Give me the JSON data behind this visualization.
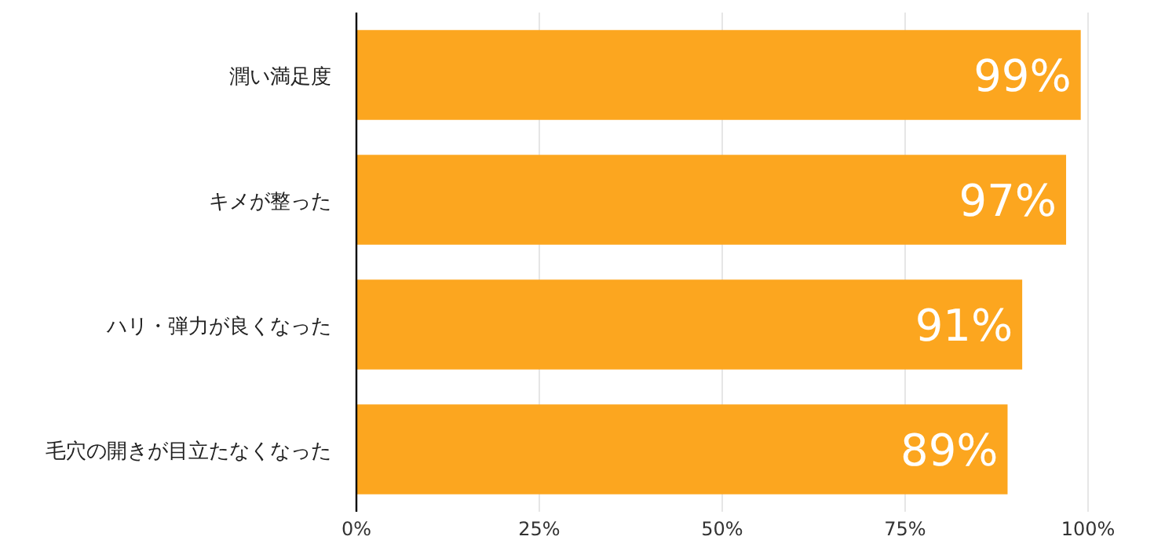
{
  "chart_data": {
    "type": "bar",
    "orientation": "horizontal",
    "categories": [
      "潤い満足度",
      "キメが整った",
      "ハリ・弾力が良くなった",
      "毛穴の開きが目立たなくなった"
    ],
    "values": [
      99,
      97,
      91,
      89
    ],
    "value_labels": [
      "99%",
      "97%",
      "91%",
      "89%"
    ],
    "color": "#fca61f",
    "xlim": [
      0,
      100
    ],
    "xticks": [
      {
        "value": 0,
        "label": "0%"
      },
      {
        "value": 25,
        "label": "25%"
      },
      {
        "value": 50,
        "label": "50%"
      },
      {
        "value": 75,
        "label": "75%"
      },
      {
        "value": 100,
        "label": "100%"
      }
    ],
    "grid": "x"
  }
}
